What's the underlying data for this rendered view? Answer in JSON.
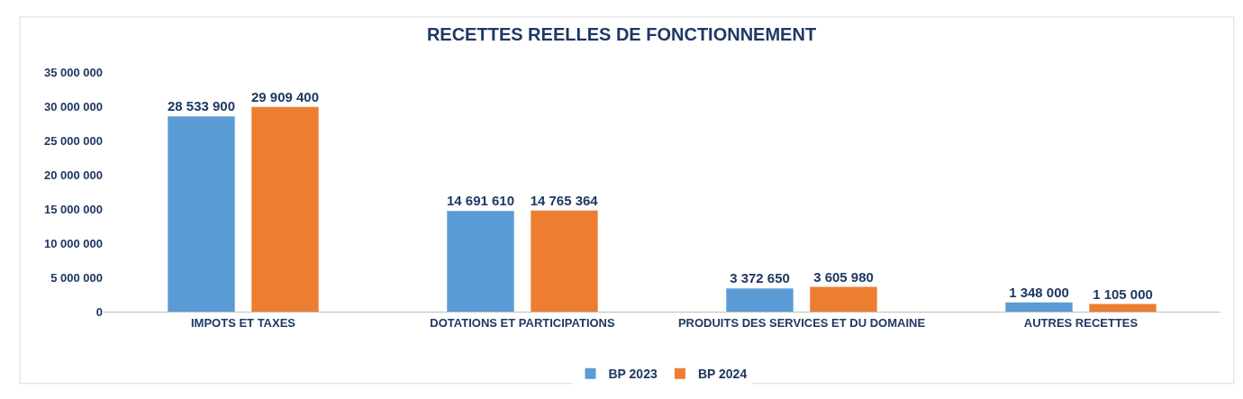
{
  "chart_data": {
    "type": "bar",
    "title": "RECETTES REELLES DE FONCTIONNEMENT",
    "categories": [
      "IMPOTS ET TAXES",
      "DOTATIONS ET PARTICIPATIONS",
      "PRODUITS DES SERVICES ET DU DOMAINE",
      "AUTRES RECETTES"
    ],
    "series": [
      {
        "name": "BP 2023",
        "color": "#5b9bd5",
        "values": [
          28533900,
          14691610,
          3372650,
          1348000
        ],
        "value_labels": [
          "28 533 900",
          "14 691 610",
          "3 372 650",
          "1 348 000"
        ]
      },
      {
        "name": "BP 2024",
        "color": "#ed7d31",
        "values": [
          29909400,
          14765364,
          3605980,
          1105000
        ],
        "value_labels": [
          "29 909 400",
          "14 765 364",
          "3 605 980",
          "1 105 000"
        ]
      }
    ],
    "ylim": [
      0,
      35000000
    ],
    "yticks": [
      {
        "value": 0,
        "label": "0"
      },
      {
        "value": 5000000,
        "label": "5 000 000"
      },
      {
        "value": 10000000,
        "label": "10 000 000"
      },
      {
        "value": 15000000,
        "label": "15 000 000"
      },
      {
        "value": 20000000,
        "label": "20 000 000"
      },
      {
        "value": 25000000,
        "label": "25 000 000"
      },
      {
        "value": 30000000,
        "label": "30 000 000"
      },
      {
        "value": 35000000,
        "label": "35 000 000"
      }
    ],
    "legend": "bottom"
  }
}
